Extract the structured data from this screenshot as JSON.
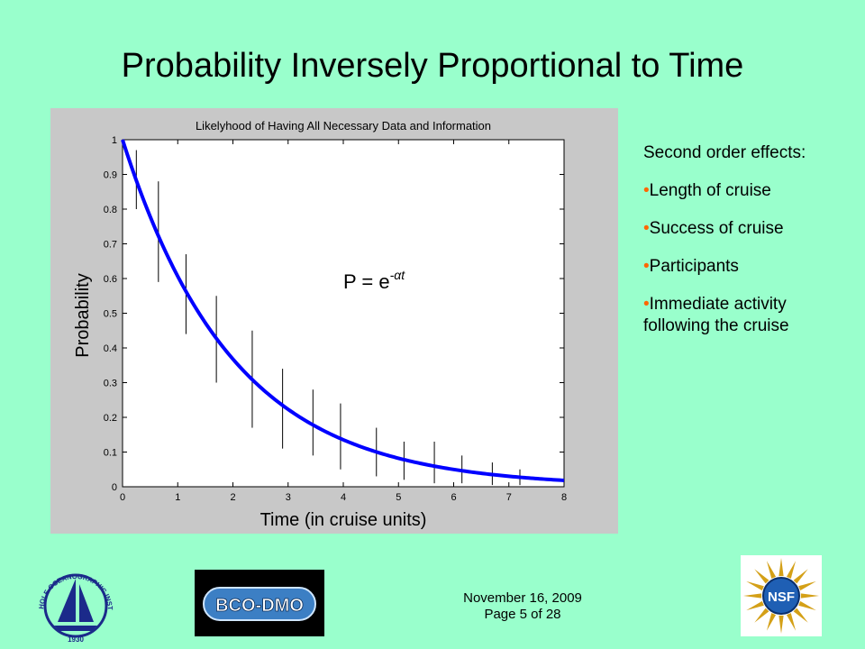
{
  "slide": {
    "title": "Probability Inversely Proportional to Time",
    "side_lead": "Second order effects:",
    "bullets": [
      "Length of cruise",
      "Success of cruise",
      "Participants",
      "Immediate activity following the cruise"
    ],
    "bullet_char": "•",
    "footer_date": "November 16, 2009",
    "footer_page": "Page 5 of 28"
  },
  "logos": {
    "whoi": {
      "icon": "whoi-logo-icon",
      "text": "WOODS HOLE OCEANOGRAPHIC INSTITUTION",
      "year": "1930"
    },
    "bcodmo": {
      "icon": "bcodmo-logo-icon",
      "text": "BCO-DMO"
    },
    "nsf": {
      "icon": "nsf-logo-icon",
      "text": "NSF"
    }
  },
  "chart_data": {
    "type": "line",
    "title": "Likelyhood of Having All Necessary Data and Information",
    "xlabel": "Time (in cruise units)",
    "ylabel": "Probability",
    "equation": {
      "lhs": "P = e",
      "exp": "-αt"
    },
    "xlim": [
      0,
      8
    ],
    "ylim": [
      0,
      1
    ],
    "xticks": [
      0,
      1,
      2,
      3,
      4,
      5,
      6,
      7,
      8
    ],
    "yticks": [
      0,
      0.1,
      0.2,
      0.3,
      0.4,
      0.5,
      0.6,
      0.7,
      0.8,
      0.9,
      1
    ],
    "grid": false,
    "curve": {
      "function": "exp(-alpha*t)",
      "alpha": 0.5,
      "color": "#0000ff"
    },
    "error_bars": [
      {
        "x": 0.25,
        "low": 0.8,
        "high": 0.97
      },
      {
        "x": 0.65,
        "low": 0.59,
        "high": 0.88
      },
      {
        "x": 1.15,
        "low": 0.44,
        "high": 0.67
      },
      {
        "x": 1.7,
        "low": 0.3,
        "high": 0.55
      },
      {
        "x": 2.35,
        "low": 0.17,
        "high": 0.45
      },
      {
        "x": 2.9,
        "low": 0.11,
        "high": 0.34
      },
      {
        "x": 3.45,
        "low": 0.09,
        "high": 0.28
      },
      {
        "x": 3.95,
        "low": 0.05,
        "high": 0.24
      },
      {
        "x": 4.6,
        "low": 0.03,
        "high": 0.17
      },
      {
        "x": 5.1,
        "low": 0.02,
        "high": 0.13
      },
      {
        "x": 5.65,
        "low": 0.01,
        "high": 0.13
      },
      {
        "x": 6.15,
        "low": 0.01,
        "high": 0.09
      },
      {
        "x": 6.7,
        "low": 0.005,
        "high": 0.07
      },
      {
        "x": 7.2,
        "low": 0.005,
        "high": 0.05
      }
    ]
  }
}
